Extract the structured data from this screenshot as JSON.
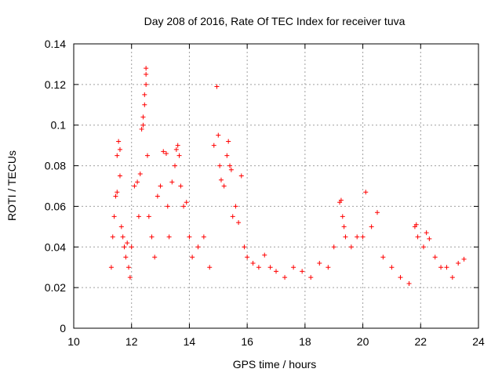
{
  "chart_data": {
    "type": "scatter",
    "title": "Day 208 of 2016, Rate Of TEC Index for receiver tuva",
    "xlabel": "GPS time / hours",
    "ylabel": "ROTI / TECUs",
    "xlim": [
      10,
      24
    ],
    "ylim": [
      0,
      0.14
    ],
    "xticks": [
      "10",
      "12",
      "14",
      "16",
      "18",
      "20",
      "22",
      "24"
    ],
    "yticks": [
      "0",
      "0.02",
      "0.04",
      "0.06",
      "0.08",
      "0.1",
      "0.12",
      "0.14"
    ],
    "grid": true,
    "marker": "plus",
    "color": "#ff0000",
    "series": [
      {
        "x": [
          11.3,
          11.35,
          11.4,
          11.45,
          11.5,
          11.5,
          11.55,
          11.6,
          11.6,
          11.65,
          11.7,
          11.75,
          11.8,
          11.85,
          11.9,
          11.95,
          12.0,
          12.1,
          12.2,
          12.25,
          12.3,
          12.35,
          12.4,
          12.4,
          12.45,
          12.45,
          12.5,
          12.5,
          12.5,
          12.55,
          12.6,
          12.7,
          12.8,
          12.9,
          13.0,
          13.1,
          13.2,
          13.25,
          13.3,
          13.4,
          13.5,
          13.55,
          13.6,
          13.65,
          13.7,
          13.8,
          13.9,
          14.0,
          14.1,
          14.3,
          14.5,
          14.7,
          14.85,
          14.95,
          15.0,
          15.05,
          15.1,
          15.2,
          15.3,
          15.35,
          15.4,
          15.45,
          15.5,
          15.6,
          15.7,
          15.8,
          15.9,
          16.0,
          16.2,
          16.4,
          16.6,
          16.8,
          17.0,
          17.3,
          17.6,
          17.9,
          18.2,
          18.5,
          18.8,
          19.0,
          19.2,
          19.25,
          19.3,
          19.35,
          19.4,
          19.6,
          19.8,
          20.0,
          20.1,
          20.3,
          20.5,
          20.7,
          21.0,
          21.3,
          21.6,
          21.8,
          21.85,
          21.9,
          22.1,
          22.2,
          22.3,
          22.5,
          22.7,
          22.9,
          23.1,
          23.3,
          23.5
        ],
        "y": [
          0.03,
          0.045,
          0.055,
          0.065,
          0.067,
          0.085,
          0.092,
          0.088,
          0.075,
          0.05,
          0.045,
          0.04,
          0.035,
          0.042,
          0.03,
          0.025,
          0.04,
          0.07,
          0.072,
          0.055,
          0.076,
          0.098,
          0.1,
          0.104,
          0.11,
          0.115,
          0.12,
          0.125,
          0.128,
          0.085,
          0.055,
          0.045,
          0.035,
          0.065,
          0.07,
          0.087,
          0.086,
          0.06,
          0.045,
          0.072,
          0.08,
          0.088,
          0.09,
          0.085,
          0.07,
          0.06,
          0.062,
          0.045,
          0.035,
          0.04,
          0.045,
          0.03,
          0.09,
          0.119,
          0.095,
          0.08,
          0.073,
          0.07,
          0.085,
          0.092,
          0.08,
          0.078,
          0.055,
          0.06,
          0.052,
          0.075,
          0.04,
          0.035,
          0.032,
          0.03,
          0.036,
          0.03,
          0.028,
          0.025,
          0.03,
          0.028,
          0.025,
          0.032,
          0.03,
          0.04,
          0.062,
          0.063,
          0.055,
          0.05,
          0.045,
          0.04,
          0.045,
          0.045,
          0.067,
          0.05,
          0.057,
          0.035,
          0.03,
          0.025,
          0.022,
          0.05,
          0.051,
          0.045,
          0.04,
          0.047,
          0.044,
          0.035,
          0.03,
          0.03,
          0.025,
          0.032,
          0.034
        ]
      }
    ]
  }
}
